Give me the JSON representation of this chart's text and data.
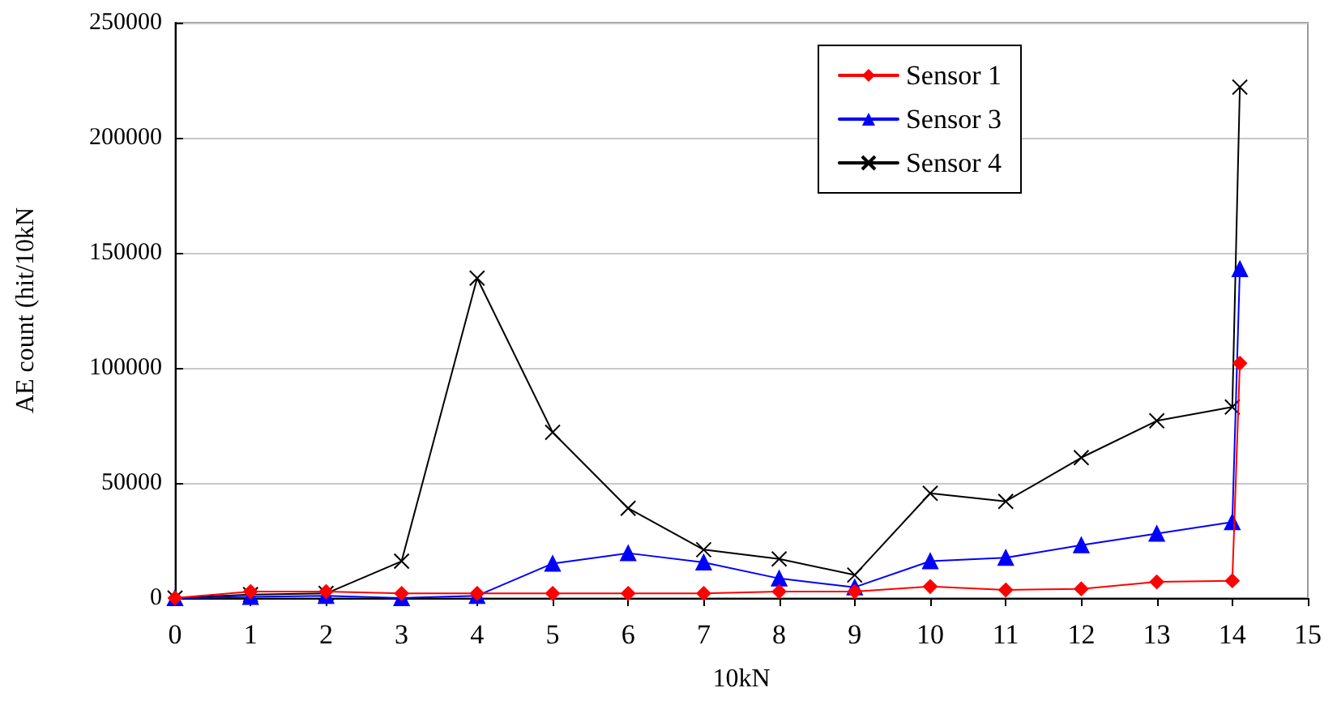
{
  "chart_data": {
    "type": "line",
    "xlabel": "10kN",
    "ylabel": "AE count (hit/10kN",
    "x": [
      0,
      1,
      2,
      3,
      4,
      5,
      6,
      7,
      8,
      9,
      10,
      11,
      12,
      13,
      14,
      14.1
    ],
    "series": [
      {
        "name": "Sensor 1",
        "color": "#ff0000",
        "marker": "diamond",
        "values": [
          0,
          2800,
          2800,
          2000,
          2000,
          2000,
          2000,
          2000,
          2800,
          2800,
          5000,
          3500,
          4000,
          7000,
          7500,
          102000
        ]
      },
      {
        "name": "Sensor 3",
        "color": "#0000ff",
        "marker": "triangle",
        "values": [
          0,
          500,
          1000,
          0,
          1000,
          15000,
          19500,
          15500,
          8500,
          4700,
          16000,
          17500,
          23000,
          28000,
          33000,
          143000
        ]
      },
      {
        "name": "Sensor 4",
        "color": "#000000",
        "marker": "cross",
        "values": [
          0,
          1500,
          2000,
          16000,
          139000,
          72000,
          39000,
          21000,
          17000,
          10000,
          45500,
          42000,
          61000,
          77000,
          83000,
          222000
        ]
      }
    ],
    "xlim": [
      0,
      15
    ],
    "xticks": [
      0,
      1,
      2,
      3,
      4,
      5,
      6,
      7,
      8,
      9,
      10,
      11,
      12,
      13,
      14,
      15
    ],
    "ylim": [
      0,
      250000
    ],
    "yticks": [
      0,
      50000,
      100000,
      150000,
      200000,
      250000
    ],
    "grid": "y",
    "legend": "top right",
    "line_style": "solid"
  }
}
